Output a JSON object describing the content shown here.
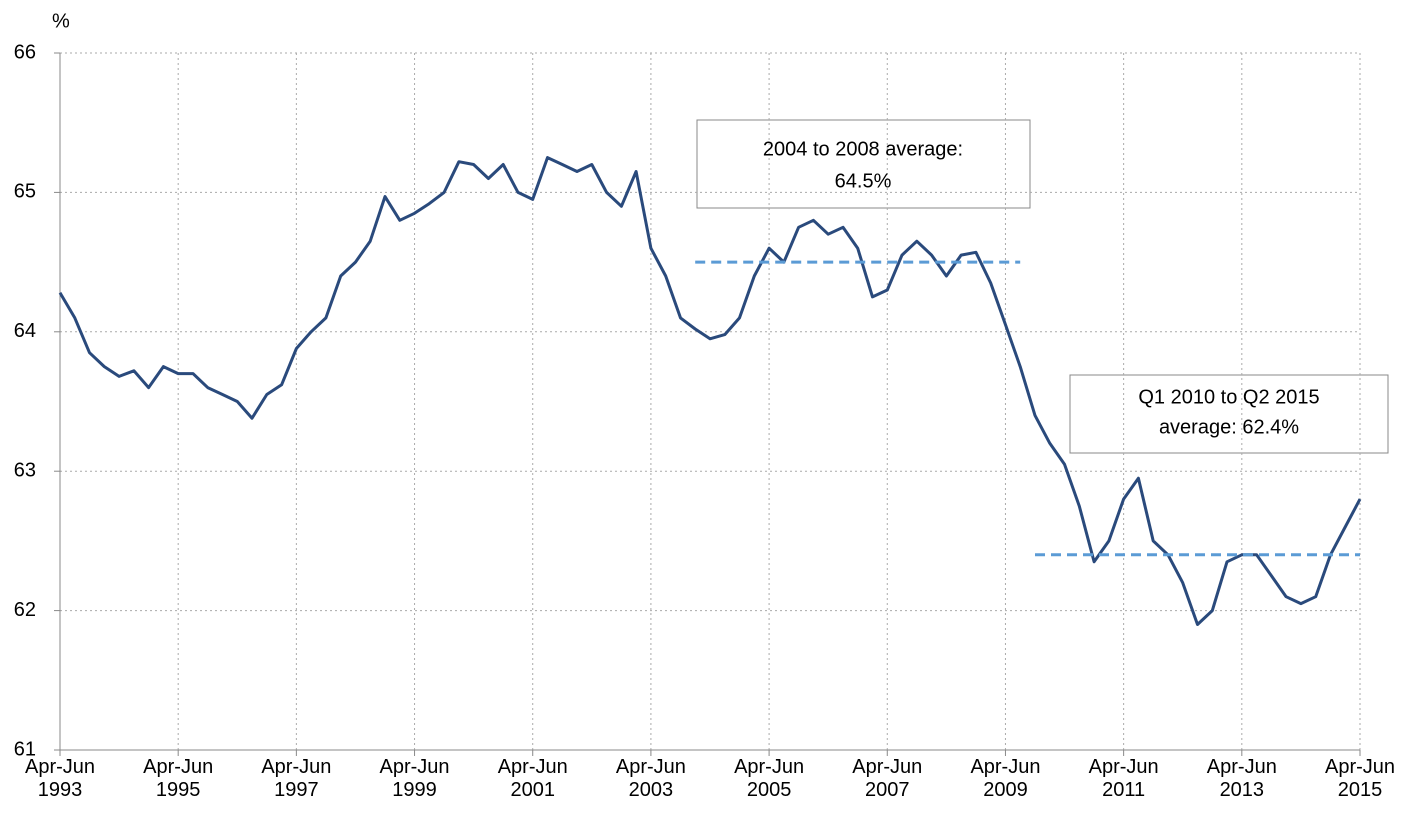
{
  "chart_data": {
    "type": "line",
    "y_unit": "%",
    "categories": [
      "Apr-Jun 1993",
      null,
      null,
      null,
      null,
      null,
      null,
      null,
      "Apr-Jun 1995",
      null,
      null,
      null,
      null,
      null,
      null,
      null,
      "Apr-Jun 1997",
      null,
      null,
      null,
      null,
      null,
      null,
      null,
      "Apr-Jun 1999",
      null,
      null,
      null,
      null,
      null,
      null,
      null,
      "Apr-Jun 2001",
      null,
      null,
      null,
      null,
      null,
      null,
      null,
      "Apr-Jun 2003",
      null,
      null,
      null,
      null,
      null,
      null,
      null,
      "Apr-Jun 2005",
      null,
      null,
      null,
      null,
      null,
      null,
      null,
      "Apr-Jun 2007",
      null,
      null,
      null,
      null,
      null,
      null,
      null,
      "Apr-Jun 2009",
      null,
      null,
      null,
      null,
      null,
      null,
      null,
      "Apr-Jun 2011",
      null,
      null,
      null,
      null,
      null,
      null,
      null,
      "Apr-Jun 2013",
      null,
      null,
      null,
      null,
      null,
      null,
      null,
      "Apr-Jun 2015"
    ],
    "series": [
      {
        "color": "#2a4a7c",
        "dashed": false,
        "values": [
          64.28,
          64.1,
          63.85,
          63.75,
          63.68,
          63.72,
          63.6,
          63.75,
          63.7,
          63.7,
          63.6,
          63.55,
          63.5,
          63.38,
          63.55,
          63.62,
          63.88,
          64.0,
          64.1,
          64.4,
          64.5,
          64.65,
          64.97,
          64.8,
          64.85,
          64.92,
          65.0,
          65.22,
          65.2,
          65.1,
          65.2,
          65.0,
          64.95,
          65.25,
          65.2,
          65.15,
          65.2,
          65.0,
          64.9,
          65.15,
          64.6,
          64.4,
          64.1,
          64.02,
          63.95,
          63.98,
          64.1,
          64.4,
          64.6,
          64.5,
          64.75,
          64.8,
          64.7,
          64.75,
          64.6,
          64.25,
          64.3,
          64.55,
          64.65,
          64.55,
          64.4,
          64.55,
          64.57,
          64.35,
          64.05,
          63.75,
          63.4,
          63.2,
          63.05,
          62.75,
          62.35,
          62.5,
          62.8,
          62.95,
          62.5,
          62.4,
          62.2,
          61.9,
          62.0,
          62.35,
          62.4,
          62.4,
          62.25,
          62.1,
          62.05,
          62.1,
          62.4,
          62.6,
          62.8
        ]
      },
      {
        "color": "#5b9bd5",
        "dashed": true,
        "values": [
          null,
          null,
          null,
          null,
          null,
          null,
          null,
          null,
          null,
          null,
          null,
          null,
          null,
          null,
          null,
          null,
          null,
          null,
          null,
          null,
          null,
          null,
          null,
          null,
          null,
          null,
          null,
          null,
          null,
          null,
          null,
          null,
          null,
          null,
          null,
          null,
          null,
          null,
          null,
          null,
          null,
          null,
          null,
          64.5,
          64.5,
          64.5,
          64.5,
          64.5,
          64.5,
          64.5,
          64.5,
          64.5,
          64.5,
          64.5,
          64.5,
          64.5,
          64.5,
          64.5,
          64.5,
          64.5,
          64.5,
          64.5,
          64.5,
          64.5,
          64.5,
          64.5,
          null,
          null,
          null,
          null,
          null,
          null,
          null,
          null,
          null,
          null,
          null,
          null,
          null,
          null,
          null,
          null,
          null,
          null,
          null,
          null,
          null,
          null,
          null
        ]
      },
      {
        "color": "#5b9bd5",
        "dashed": true,
        "values": [
          null,
          null,
          null,
          null,
          null,
          null,
          null,
          null,
          null,
          null,
          null,
          null,
          null,
          null,
          null,
          null,
          null,
          null,
          null,
          null,
          null,
          null,
          null,
          null,
          null,
          null,
          null,
          null,
          null,
          null,
          null,
          null,
          null,
          null,
          null,
          null,
          null,
          null,
          null,
          null,
          null,
          null,
          null,
          null,
          null,
          null,
          null,
          null,
          null,
          null,
          null,
          null,
          null,
          null,
          null,
          null,
          null,
          null,
          null,
          null,
          null,
          null,
          null,
          null,
          null,
          null,
          62.4,
          62.4,
          62.4,
          62.4,
          62.4,
          62.4,
          62.4,
          62.4,
          62.4,
          62.4,
          62.4,
          62.4,
          62.4,
          62.4,
          62.4,
          62.4,
          62.4,
          62.4,
          62.4,
          62.4,
          62.4,
          62.4,
          62.4
        ]
      }
    ],
    "annotations": [
      {
        "lines": [
          "2004 to 2008  average:",
          "64.5%"
        ]
      },
      {
        "lines": [
          "Q1 2010  to Q2 2015",
          "average: 62.4%"
        ]
      }
    ],
    "ylim": [
      61,
      66
    ],
    "yticks": [
      61,
      62,
      63,
      64,
      65,
      66
    ],
    "grid": true
  }
}
